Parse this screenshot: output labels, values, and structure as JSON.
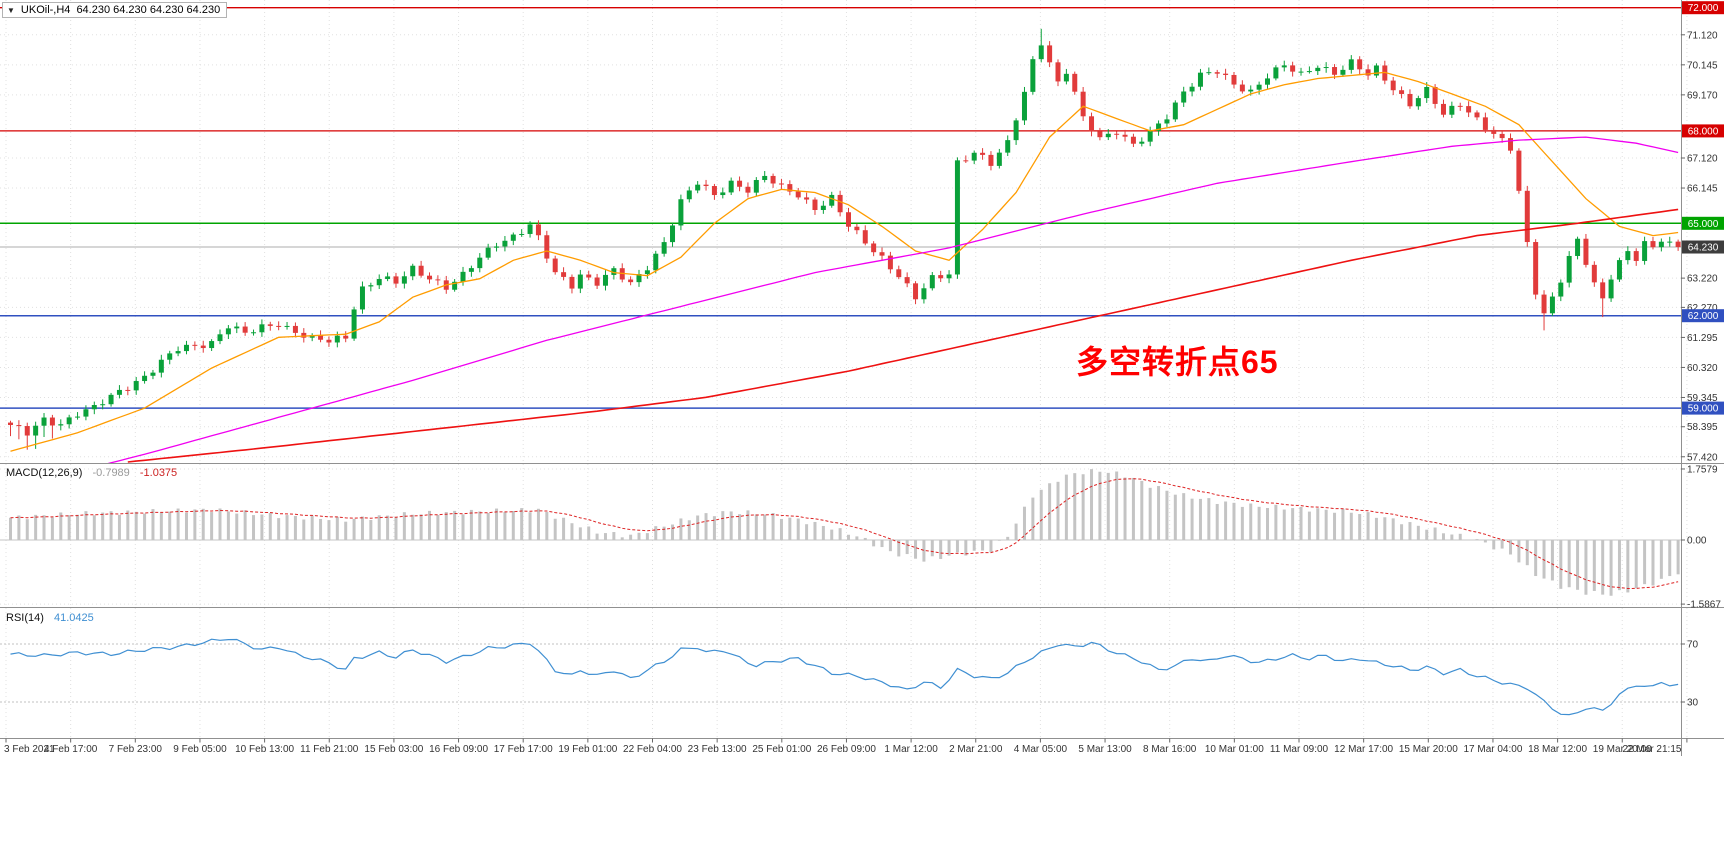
{
  "window": {
    "arrow": "▼",
    "symbol_period": "UKOil-,H4",
    "ohlc_text": "64.230 64.230 64.230 64.230"
  },
  "annotation": {
    "text": "多空转折点65",
    "color": "#ff0000"
  },
  "colors": {
    "candle_up": "#0aa13a",
    "candle_down": "#e13b3b",
    "ma_fast": "#ff9c00",
    "ma_mid": "#f000f0",
    "ma_slow": "#ee1111",
    "grid": "#e0e0e0",
    "separator": "#909090",
    "macd_bar": "#c4c4c4",
    "macd_signal": "#dd2222",
    "rsi_line": "#3f8fd2",
    "axis_text": "#333333"
  },
  "chart_data": {
    "type": "candlestick",
    "symbol": "UKOil-",
    "timeframe": "H4",
    "last_price": 64.23,
    "x_ticks": [
      "3 Feb 2021",
      "4 Feb 17:00",
      "7 Feb 23:00",
      "9 Feb 05:00",
      "10 Feb 13:00",
      "11 Feb 21:00",
      "15 Feb 03:00",
      "16 Feb 09:00",
      "17 Feb 17:00",
      "19 Feb 01:00",
      "22 Feb 04:00",
      "23 Feb 13:00",
      "25 Feb 01:00",
      "26 Feb 09:00",
      "1 Mar 12:00",
      "2 Mar 21:00",
      "4 Mar 05:00",
      "5 Mar 13:00",
      "8 Mar 16:00",
      "10 Mar 01:00",
      "11 Mar 09:00",
      "12 Mar 17:00",
      "15 Mar 20:00",
      "17 Mar 04:00",
      "18 Mar 12:00",
      "19 Mar 20:00",
      "22 Mar 21:15"
    ],
    "y_ticks": [
      "71.120",
      "70.145",
      "69.170",
      "67.120",
      "66.145",
      "63.220",
      "62.270",
      "61.295",
      "60.320",
      "59.345",
      "58.395",
      "57.420"
    ],
    "price_levels": [
      {
        "value": "72.000",
        "num": 72.0,
        "line": "#d60000",
        "box": "#d60000",
        "lw": 1.3
      },
      {
        "value": "68.000",
        "num": 68.0,
        "line": "#d60000",
        "box": "#d60000",
        "lw": 1.3
      },
      {
        "value": "65.000",
        "num": 65.0,
        "line": "#00a400",
        "box": "#00a400",
        "lw": 1.5
      },
      {
        "value": "64.230",
        "num": 64.23,
        "line": "#adadad",
        "box": "#3d3d3d",
        "lw": 1
      },
      {
        "value": "62.000",
        "num": 62.0,
        "line": "#3050c0",
        "box": "#3050c0",
        "lw": 1.5
      },
      {
        "value": "59.000",
        "num": 59.0,
        "line": "#3050c0",
        "box": "#3050c0",
        "lw": 1.5
      }
    ],
    "candles_close_anchors": [
      [
        0,
        58.45
      ],
      [
        2,
        58.15
      ],
      [
        4,
        58.6
      ],
      [
        6,
        58.5
      ],
      [
        8,
        58.85
      ],
      [
        10,
        59.0
      ],
      [
        12,
        59.35
      ],
      [
        14,
        59.7
      ],
      [
        16,
        60.05
      ],
      [
        18,
        60.5
      ],
      [
        20,
        60.9
      ],
      [
        22,
        61.0
      ],
      [
        24,
        61.15
      ],
      [
        26,
        61.7
      ],
      [
        28,
        61.4
      ],
      [
        30,
        61.6
      ],
      [
        32,
        61.75
      ],
      [
        34,
        61.5
      ],
      [
        36,
        61.25
      ],
      [
        38,
        61.15
      ],
      [
        40,
        61.3
      ],
      [
        41,
        62.3
      ],
      [
        42,
        62.9
      ],
      [
        44,
        63.25
      ],
      [
        46,
        63.05
      ],
      [
        48,
        63.5
      ],
      [
        50,
        63.25
      ],
      [
        52,
        62.95
      ],
      [
        54,
        63.3
      ],
      [
        56,
        63.85
      ],
      [
        58,
        64.35
      ],
      [
        60,
        64.6
      ],
      [
        62,
        64.95
      ],
      [
        63,
        64.5
      ],
      [
        64,
        63.9
      ],
      [
        65,
        63.35
      ],
      [
        67,
        63.0
      ],
      [
        68,
        63.35
      ],
      [
        70,
        63.1
      ],
      [
        72,
        63.45
      ],
      [
        74,
        63.0
      ],
      [
        76,
        63.6
      ],
      [
        78,
        64.4
      ],
      [
        80,
        65.7
      ],
      [
        82,
        66.3
      ],
      [
        84,
        65.9
      ],
      [
        86,
        66.35
      ],
      [
        88,
        66.1
      ],
      [
        90,
        66.5
      ],
      [
        92,
        66.15
      ],
      [
        94,
        65.95
      ],
      [
        96,
        65.5
      ],
      [
        98,
        65.8
      ],
      [
        100,
        64.9
      ],
      [
        102,
        64.4
      ],
      [
        104,
        63.9
      ],
      [
        106,
        63.3
      ],
      [
        108,
        62.55
      ],
      [
        110,
        63.2
      ],
      [
        111,
        63.3
      ],
      [
        112,
        63.4
      ],
      [
        113,
        67.0
      ],
      [
        115,
        67.3
      ],
      [
        117,
        66.9
      ],
      [
        119,
        67.6
      ],
      [
        121,
        69.3
      ],
      [
        122,
        70.3
      ],
      [
        123,
        70.9
      ],
      [
        124,
        70.2
      ],
      [
        125,
        69.5
      ],
      [
        126,
        69.9
      ],
      [
        127,
        69.2
      ],
      [
        128,
        68.4
      ],
      [
        130,
        67.8
      ],
      [
        132,
        68.0
      ],
      [
        134,
        67.5
      ],
      [
        136,
        67.9
      ],
      [
        138,
        68.5
      ],
      [
        140,
        69.3
      ],
      [
        142,
        69.8
      ],
      [
        144,
        69.9
      ],
      [
        146,
        69.5
      ],
      [
        148,
        69.3
      ],
      [
        150,
        69.8
      ],
      [
        152,
        70.1
      ],
      [
        154,
        69.8
      ],
      [
        156,
        70.15
      ],
      [
        158,
        69.9
      ],
      [
        160,
        70.2
      ],
      [
        162,
        69.8
      ],
      [
        163,
        70.0
      ],
      [
        165,
        69.4
      ],
      [
        167,
        68.9
      ],
      [
        169,
        69.3
      ],
      [
        171,
        68.5
      ],
      [
        173,
        68.9
      ],
      [
        175,
        68.4
      ],
      [
        177,
        67.9
      ],
      [
        179,
        67.4
      ],
      [
        180,
        66.0
      ],
      [
        181,
        64.3
      ],
      [
        182,
        62.8
      ],
      [
        183,
        62.1
      ],
      [
        184,
        62.6
      ],
      [
        185,
        63.2
      ],
      [
        186,
        63.9
      ],
      [
        187,
        64.4
      ],
      [
        188,
        63.7
      ],
      [
        189,
        63.0
      ],
      [
        190,
        62.5
      ],
      [
        191,
        63.3
      ],
      [
        192,
        63.8
      ],
      [
        193,
        64.1
      ],
      [
        194,
        63.9
      ],
      [
        195,
        64.35
      ],
      [
        196,
        64.15
      ],
      [
        197,
        64.45
      ],
      [
        198,
        64.3
      ],
      [
        199,
        64.23
      ]
    ],
    "ma": {
      "fast_orange": [
        [
          0,
          57.6
        ],
        [
          8,
          58.2
        ],
        [
          16,
          59.0
        ],
        [
          24,
          60.3
        ],
        [
          32,
          61.3
        ],
        [
          40,
          61.4
        ],
        [
          44,
          61.8
        ],
        [
          48,
          62.6
        ],
        [
          52,
          63.0
        ],
        [
          56,
          63.2
        ],
        [
          60,
          63.8
        ],
        [
          64,
          64.1
        ],
        [
          68,
          63.8
        ],
        [
          72,
          63.4
        ],
        [
          76,
          63.3
        ],
        [
          80,
          63.9
        ],
        [
          84,
          65.0
        ],
        [
          88,
          65.8
        ],
        [
          92,
          66.1
        ],
        [
          96,
          66.0
        ],
        [
          100,
          65.6
        ],
        [
          104,
          64.9
        ],
        [
          108,
          64.1
        ],
        [
          112,
          63.8
        ],
        [
          116,
          64.8
        ],
        [
          120,
          66.0
        ],
        [
          124,
          67.8
        ],
        [
          128,
          68.8
        ],
        [
          132,
          68.4
        ],
        [
          136,
          68.0
        ],
        [
          140,
          68.2
        ],
        [
          144,
          68.7
        ],
        [
          148,
          69.2
        ],
        [
          152,
          69.5
        ],
        [
          156,
          69.7
        ],
        [
          160,
          69.8
        ],
        [
          164,
          69.9
        ],
        [
          168,
          69.6
        ],
        [
          172,
          69.2
        ],
        [
          176,
          68.8
        ],
        [
          180,
          68.2
        ],
        [
          184,
          67.0
        ],
        [
          188,
          65.8
        ],
        [
          192,
          64.9
        ],
        [
          196,
          64.6
        ],
        [
          199,
          64.7
        ]
      ],
      "mid_magenta": [
        [
          0,
          56.4
        ],
        [
          16,
          57.5
        ],
        [
          32,
          58.7
        ],
        [
          48,
          59.9
        ],
        [
          64,
          61.2
        ],
        [
          80,
          62.3
        ],
        [
          96,
          63.4
        ],
        [
          112,
          64.2
        ],
        [
          128,
          65.3
        ],
        [
          144,
          66.3
        ],
        [
          160,
          67.0
        ],
        [
          172,
          67.5
        ],
        [
          180,
          67.7
        ],
        [
          188,
          67.8
        ],
        [
          194,
          67.6
        ],
        [
          199,
          67.3
        ]
      ],
      "slow_red": [
        [
          14,
          57.25
        ],
        [
          30,
          57.7
        ],
        [
          50,
          58.3
        ],
        [
          70,
          58.9
        ],
        [
          83,
          59.35
        ],
        [
          100,
          60.2
        ],
        [
          115,
          61.1
        ],
        [
          130,
          62.0
        ],
        [
          145,
          62.9
        ],
        [
          160,
          63.8
        ],
        [
          175,
          64.6
        ],
        [
          187,
          65.0
        ],
        [
          199,
          65.45
        ]
      ]
    },
    "macd": {
      "label": "MACD(12,26,9)",
      "main_str": "-0.7989",
      "signal_str": "-1.0375",
      "main_value": -0.7989,
      "signal_value": -1.0375,
      "ticks": [
        "1.7579",
        "0.00",
        "-1.5867"
      ],
      "tick_nums": [
        1.7579,
        0,
        -1.5867
      ],
      "main_anchors": [
        [
          0,
          0.55
        ],
        [
          8,
          0.65
        ],
        [
          16,
          0.7
        ],
        [
          24,
          0.75
        ],
        [
          32,
          0.6
        ],
        [
          40,
          0.5
        ],
        [
          48,
          0.65
        ],
        [
          55,
          0.7
        ],
        [
          63,
          0.75
        ],
        [
          66,
          0.5
        ],
        [
          70,
          0.2
        ],
        [
          74,
          0.1
        ],
        [
          78,
          0.35
        ],
        [
          82,
          0.6
        ],
        [
          86,
          0.7
        ],
        [
          90,
          0.65
        ],
        [
          94,
          0.5
        ],
        [
          98,
          0.3
        ],
        [
          101,
          0.1
        ],
        [
          105,
          -0.3
        ],
        [
          109,
          -0.5
        ],
        [
          113,
          -0.35
        ],
        [
          117,
          -0.25
        ],
        [
          119,
          0.1
        ],
        [
          122,
          1.1
        ],
        [
          125,
          1.5
        ],
        [
          127,
          1.65
        ],
        [
          130,
          1.72
        ],
        [
          133,
          1.6
        ],
        [
          136,
          1.35
        ],
        [
          140,
          1.1
        ],
        [
          144,
          0.95
        ],
        [
          148,
          0.85
        ],
        [
          152,
          0.8
        ],
        [
          156,
          0.75
        ],
        [
          160,
          0.7
        ],
        [
          163,
          0.6
        ],
        [
          167,
          0.4
        ],
        [
          171,
          0.2
        ],
        [
          175,
          0.0
        ],
        [
          179,
          -0.35
        ],
        [
          182,
          -0.85
        ],
        [
          185,
          -1.15
        ],
        [
          188,
          -1.3
        ],
        [
          191,
          -1.35
        ],
        [
          194,
          -1.2
        ],
        [
          197,
          -1.0
        ],
        [
          199,
          -0.8
        ]
      ]
    },
    "rsi": {
      "label": "RSI(14)",
      "value_str": "41.0425",
      "value": 41.0425,
      "levels": [
        70,
        30
      ],
      "ticks": [
        "70",
        "30"
      ],
      "anchors": [
        [
          0,
          63
        ],
        [
          4,
          62
        ],
        [
          8,
          64
        ],
        [
          12,
          63
        ],
        [
          16,
          66
        ],
        [
          20,
          68
        ],
        [
          24,
          72
        ],
        [
          26,
          74
        ],
        [
          28,
          70
        ],
        [
          30,
          66
        ],
        [
          32,
          68
        ],
        [
          34,
          63
        ],
        [
          36,
          60
        ],
        [
          38,
          57
        ],
        [
          40,
          52
        ],
        [
          41,
          60
        ],
        [
          44,
          64
        ],
        [
          46,
          61
        ],
        [
          48,
          66
        ],
        [
          50,
          62
        ],
        [
          52,
          58
        ],
        [
          54,
          61
        ],
        [
          57,
          67
        ],
        [
          60,
          69
        ],
        [
          62,
          71
        ],
        [
          63,
          65
        ],
        [
          65,
          52
        ],
        [
          67,
          48
        ],
        [
          68,
          52
        ],
        [
          70,
          48
        ],
        [
          72,
          52
        ],
        [
          74,
          46
        ],
        [
          76,
          52
        ],
        [
          78,
          58
        ],
        [
          80,
          66
        ],
        [
          82,
          68
        ],
        [
          83,
          64
        ],
        [
          85,
          66
        ],
        [
          87,
          60
        ],
        [
          89,
          55
        ],
        [
          91,
          58
        ],
        [
          94,
          60
        ],
        [
          96,
          55
        ],
        [
          98,
          50
        ],
        [
          101,
          48
        ],
        [
          103,
          45
        ],
        [
          105,
          42
        ],
        [
          107,
          38
        ],
        [
          109,
          44
        ],
        [
          111,
          40
        ],
        [
          113,
          52
        ],
        [
          115,
          48
        ],
        [
          117,
          46
        ],
        [
          119,
          50
        ],
        [
          121,
          58
        ],
        [
          123,
          64
        ],
        [
          125,
          70
        ],
        [
          127,
          68
        ],
        [
          129,
          71
        ],
        [
          131,
          66
        ],
        [
          133,
          62
        ],
        [
          135,
          58
        ],
        [
          137,
          52
        ],
        [
          139,
          55
        ],
        [
          141,
          60
        ],
        [
          143,
          58
        ],
        [
          145,
          62
        ],
        [
          147,
          60
        ],
        [
          149,
          57
        ],
        [
          151,
          60
        ],
        [
          153,
          62
        ],
        [
          155,
          60
        ],
        [
          157,
          62
        ],
        [
          159,
          58
        ],
        [
          161,
          60
        ],
        [
          163,
          57
        ],
        [
          165,
          55
        ],
        [
          167,
          52
        ],
        [
          169,
          54
        ],
        [
          171,
          50
        ],
        [
          173,
          52
        ],
        [
          175,
          48
        ],
        [
          177,
          45
        ],
        [
          179,
          42
        ],
        [
          181,
          40
        ],
        [
          183,
          30
        ],
        [
          185,
          22
        ],
        [
          186,
          20
        ],
        [
          188,
          26
        ],
        [
          190,
          24
        ],
        [
          192,
          35
        ],
        [
          194,
          42
        ],
        [
          196,
          40
        ],
        [
          197,
          44
        ],
        [
          198,
          42
        ],
        [
          199,
          41
        ]
      ]
    }
  }
}
